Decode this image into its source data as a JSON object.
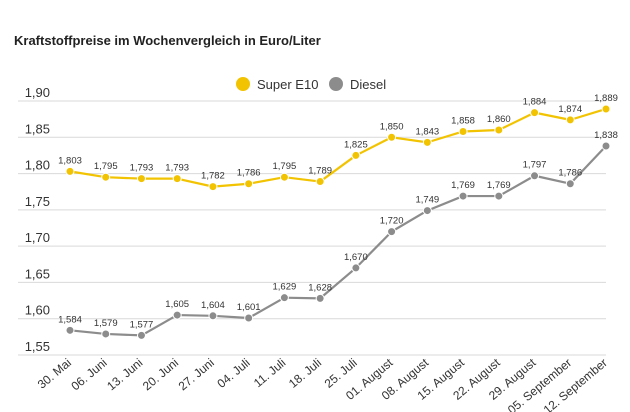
{
  "chart_data": {
    "type": "line",
    "title": "Kraftstoffpreise im Wochenvergleich in Euro/Liter",
    "xlabel": "",
    "ylabel": "",
    "ylim": [
      1.55,
      1.9
    ],
    "yticks": [
      "1,55",
      "1,60",
      "1,65",
      "1,70",
      "1,75",
      "1,80",
      "1,85",
      "1,90"
    ],
    "grid": true,
    "legend_position": "top-center",
    "categories": [
      "30. Mai",
      "06. Juni",
      "13. Juni",
      "20. Juni",
      "27. Juni",
      "04. Juli",
      "11. Juli",
      "18. Juli",
      "25. Juli",
      "01. August",
      "08. August",
      "15. August",
      "22. August",
      "29. August",
      "05. September",
      "12. September"
    ],
    "series": [
      {
        "name": "Super E10",
        "color": "#f2c300",
        "values": [
          1.803,
          1.795,
          1.793,
          1.793,
          1.782,
          1.786,
          1.795,
          1.789,
          1.825,
          1.85,
          1.843,
          1.858,
          1.86,
          1.884,
          1.874,
          1.889
        ],
        "labels": [
          "1,803",
          "1,795",
          "1,793",
          "1,793",
          "1,782",
          "1,786",
          "1,795",
          "1,789",
          "1,825",
          "1,850",
          "1,843",
          "1,858",
          "1,860",
          "1,884",
          "1,874",
          "1,889"
        ]
      },
      {
        "name": "Diesel",
        "color": "#8c8c8c",
        "values": [
          1.584,
          1.579,
          1.577,
          1.605,
          1.604,
          1.601,
          1.629,
          1.628,
          1.67,
          1.72,
          1.749,
          1.769,
          1.769,
          1.797,
          1.786,
          1.838
        ],
        "labels": [
          "1,584",
          "1,579",
          "1,577",
          "1,605",
          "1,604",
          "1,601",
          "1,629",
          "1,628",
          "1,670",
          "1,720",
          "1,749",
          "1,769",
          "1,769",
          "1,797",
          "1,786",
          "1,838"
        ]
      }
    ]
  }
}
